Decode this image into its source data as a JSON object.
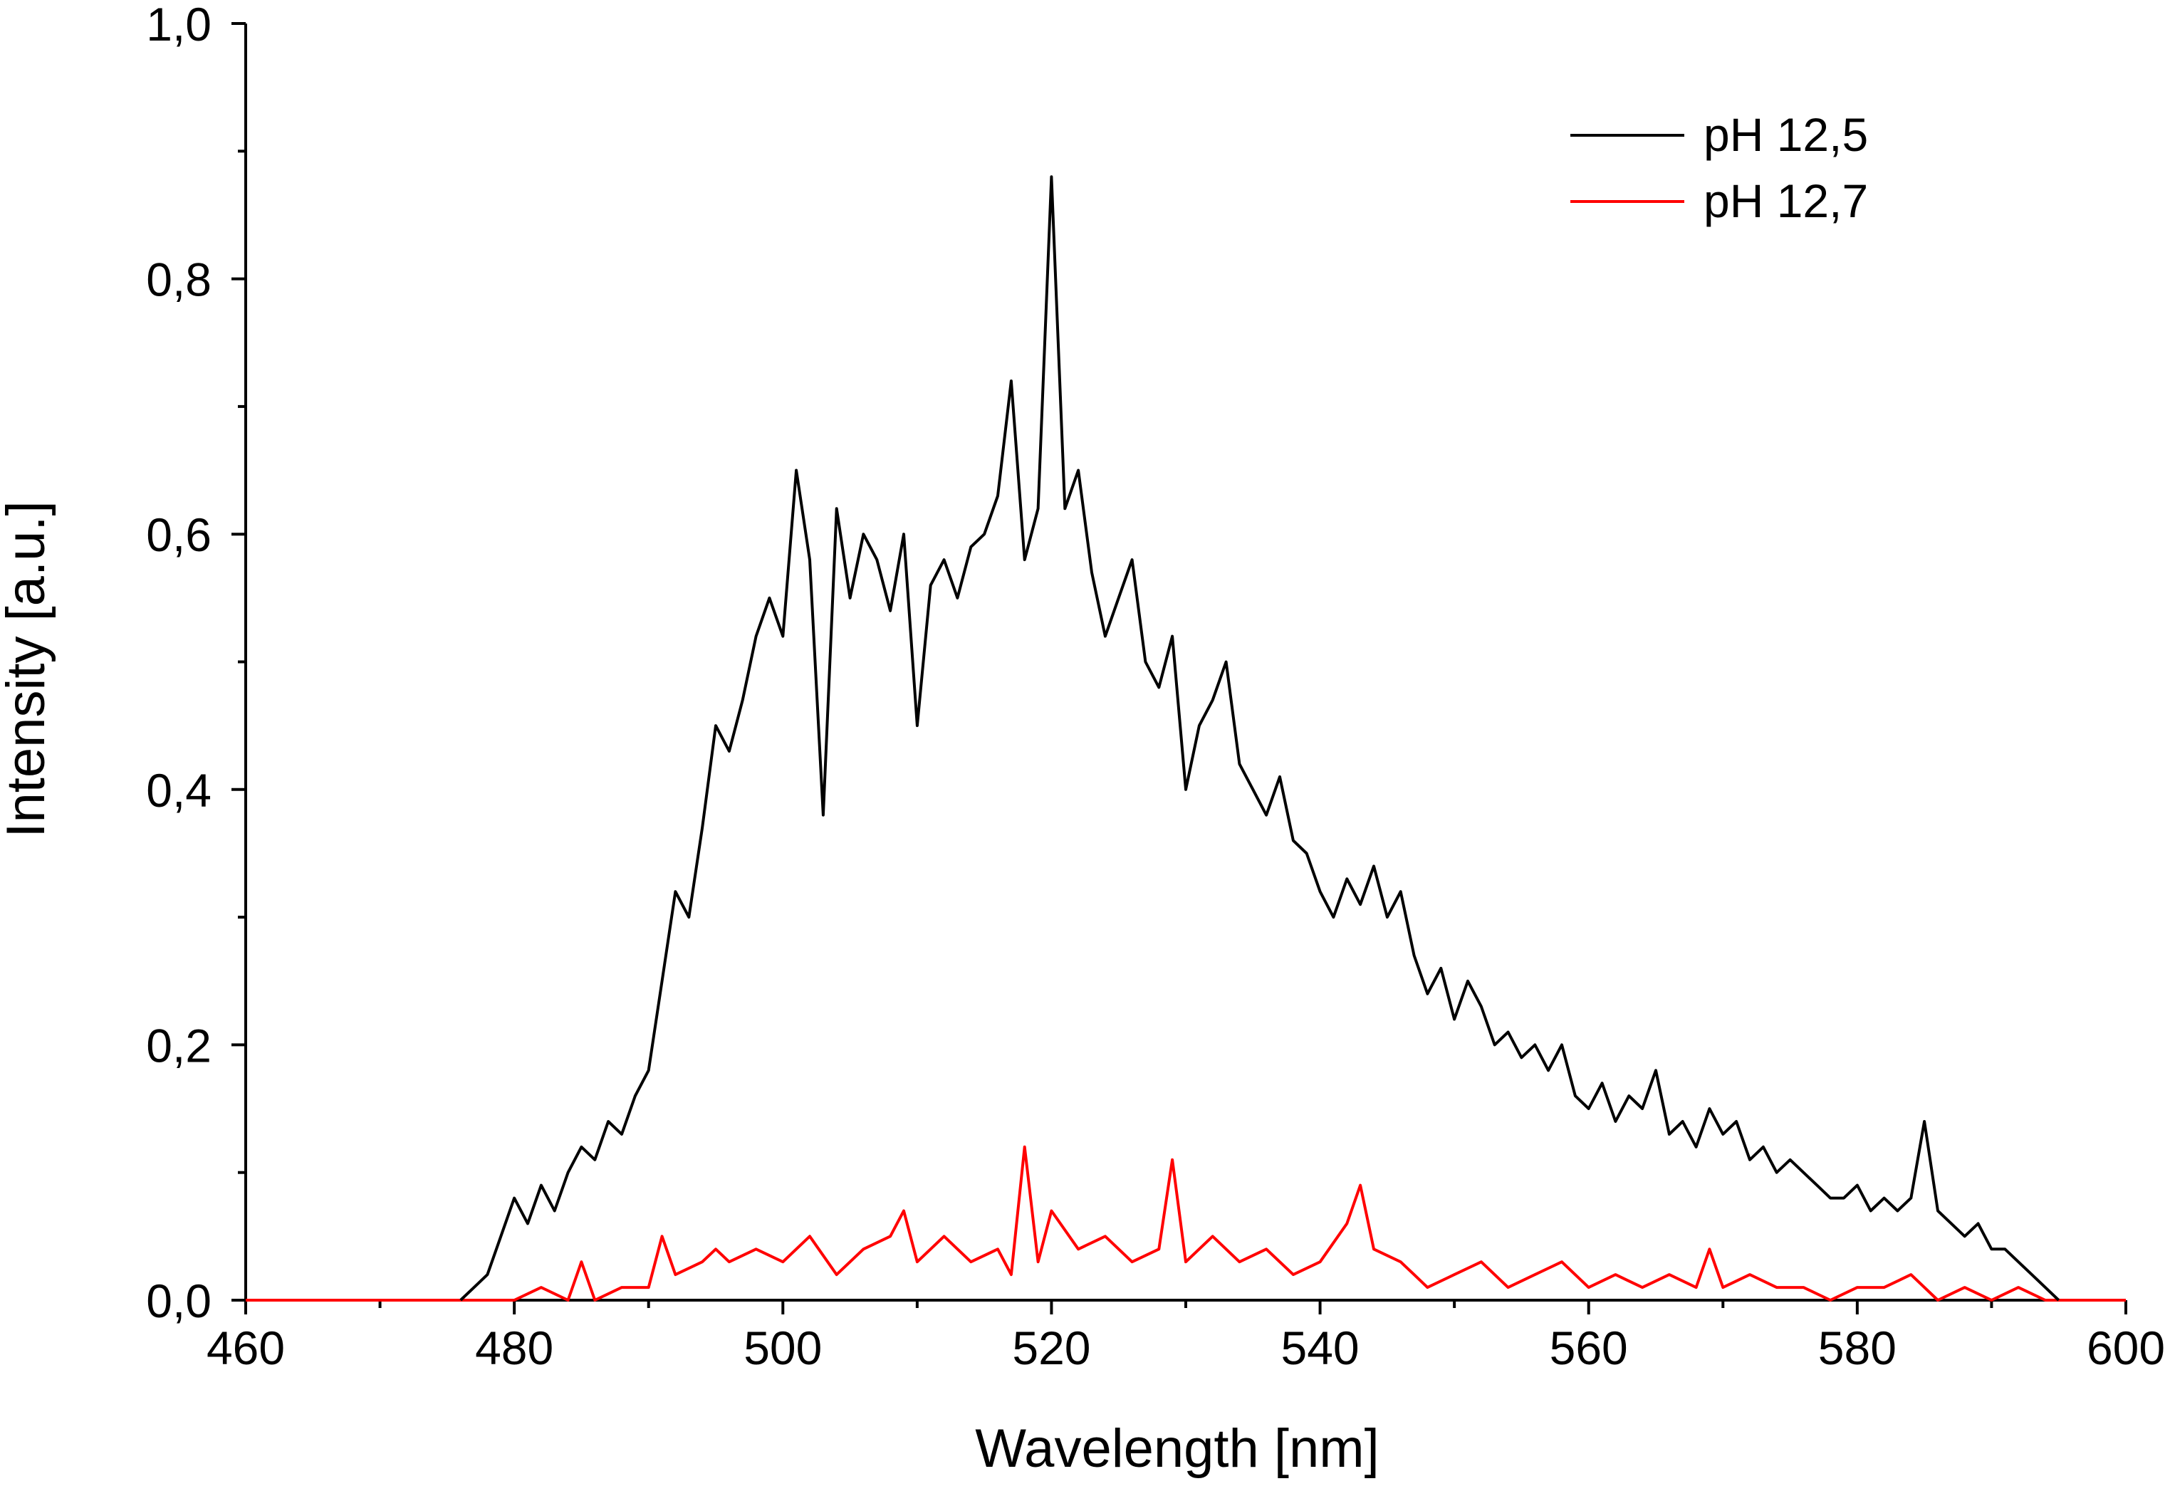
{
  "chart_data": {
    "type": "line",
    "title": "",
    "xlabel": "Wavelength [nm]",
    "ylabel": "Intensity [a.u.]",
    "xlim": [
      460,
      600
    ],
    "ylim": [
      0.0,
      1.0
    ],
    "x_ticks": [
      460,
      480,
      500,
      520,
      540,
      560,
      580,
      600
    ],
    "x_tick_labels": [
      "460",
      "480",
      "500",
      "520",
      "540",
      "560",
      "580",
      "600"
    ],
    "y_ticks": [
      0.0,
      0.2,
      0.4,
      0.6,
      0.8,
      1.0
    ],
    "y_tick_labels": [
      "0,0",
      "0,2",
      "0,4",
      "0,6",
      "0,8",
      "1,0"
    ],
    "grid": false,
    "legend_position": "top-right",
    "series": [
      {
        "name": "pH 12,5",
        "color": "#000000",
        "x": [
          476,
          477,
          478,
          479,
          480,
          481,
          482,
          483,
          484,
          485,
          486,
          487,
          488,
          489,
          490,
          491,
          492,
          493,
          494,
          495,
          496,
          497,
          498,
          499,
          500,
          501,
          502,
          503,
          504,
          505,
          506,
          507,
          508,
          509,
          510,
          511,
          512,
          513,
          514,
          515,
          516,
          517,
          518,
          519,
          520,
          521,
          522,
          523,
          524,
          525,
          526,
          527,
          528,
          529,
          530,
          531,
          532,
          533,
          534,
          535,
          536,
          537,
          538,
          539,
          540,
          541,
          542,
          543,
          544,
          545,
          546,
          547,
          548,
          549,
          550,
          551,
          552,
          553,
          554,
          555,
          556,
          557,
          558,
          559,
          560,
          561,
          562,
          563,
          564,
          565,
          566,
          567,
          568,
          569,
          570,
          571,
          572,
          573,
          574,
          575,
          576,
          577,
          578,
          579,
          580,
          581,
          582,
          583,
          584,
          585,
          586,
          587,
          588,
          589,
          590,
          591,
          592,
          593,
          594,
          595
        ],
        "values": [
          0.0,
          0.01,
          0.02,
          0.05,
          0.08,
          0.06,
          0.09,
          0.07,
          0.1,
          0.12,
          0.11,
          0.14,
          0.13,
          0.16,
          0.18,
          0.25,
          0.32,
          0.3,
          0.37,
          0.45,
          0.43,
          0.47,
          0.52,
          0.55,
          0.52,
          0.65,
          0.58,
          0.38,
          0.62,
          0.55,
          0.6,
          0.58,
          0.54,
          0.6,
          0.45,
          0.56,
          0.58,
          0.55,
          0.59,
          0.6,
          0.63,
          0.72,
          0.58,
          0.62,
          0.88,
          0.62,
          0.65,
          0.57,
          0.52,
          0.55,
          0.58,
          0.5,
          0.48,
          0.52,
          0.4,
          0.45,
          0.47,
          0.5,
          0.42,
          0.4,
          0.38,
          0.41,
          0.36,
          0.35,
          0.32,
          0.3,
          0.33,
          0.31,
          0.34,
          0.3,
          0.32,
          0.27,
          0.24,
          0.26,
          0.22,
          0.25,
          0.23,
          0.2,
          0.21,
          0.19,
          0.2,
          0.18,
          0.2,
          0.16,
          0.15,
          0.17,
          0.14,
          0.16,
          0.15,
          0.18,
          0.13,
          0.14,
          0.12,
          0.15,
          0.13,
          0.14,
          0.11,
          0.12,
          0.1,
          0.11,
          0.1,
          0.09,
          0.08,
          0.08,
          0.09,
          0.07,
          0.08,
          0.07,
          0.08,
          0.14,
          0.07,
          0.06,
          0.05,
          0.06,
          0.04,
          0.04,
          0.03,
          0.02,
          0.01,
          0.0
        ]
      },
      {
        "name": "pH 12,7",
        "color": "#ff0000",
        "x": [
          460,
          465,
          470,
          475,
          480,
          482,
          484,
          485,
          486,
          488,
          490,
          491,
          492,
          494,
          495,
          496,
          498,
          500,
          502,
          504,
          506,
          508,
          509,
          510,
          512,
          514,
          516,
          517,
          518,
          519,
          520,
          522,
          524,
          526,
          528,
          529,
          530,
          532,
          534,
          536,
          538,
          540,
          542,
          543,
          544,
          546,
          547,
          548,
          550,
          552,
          554,
          556,
          558,
          560,
          562,
          564,
          566,
          568,
          569,
          570,
          572,
          574,
          576,
          578,
          580,
          582,
          584,
          586,
          588,
          590,
          592,
          594,
          596,
          600
        ],
        "values": [
          0.0,
          0.0,
          0.0,
          0.0,
          0.0,
          0.01,
          0.0,
          0.03,
          0.0,
          0.01,
          0.01,
          0.05,
          0.02,
          0.03,
          0.04,
          0.03,
          0.04,
          0.03,
          0.05,
          0.02,
          0.04,
          0.05,
          0.07,
          0.03,
          0.05,
          0.03,
          0.04,
          0.02,
          0.12,
          0.03,
          0.07,
          0.04,
          0.05,
          0.03,
          0.04,
          0.11,
          0.03,
          0.05,
          0.03,
          0.04,
          0.02,
          0.03,
          0.06,
          0.09,
          0.04,
          0.03,
          0.02,
          0.01,
          0.02,
          0.03,
          0.01,
          0.02,
          0.03,
          0.01,
          0.02,
          0.01,
          0.02,
          0.01,
          0.04,
          0.01,
          0.02,
          0.01,
          0.01,
          0.0,
          0.01,
          0.01,
          0.02,
          0.0,
          0.01,
          0.0,
          0.01,
          0.0,
          0.0,
          0.0
        ]
      }
    ]
  }
}
